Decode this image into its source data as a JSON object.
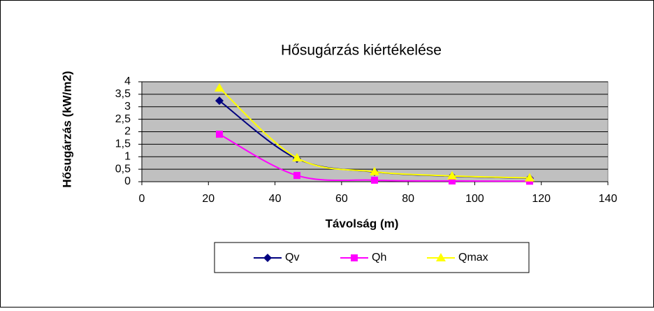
{
  "chart_data": {
    "type": "line",
    "title": "Hősugárzás kiértékelése",
    "xlabel": "Távolság (m)",
    "ylabel": "Hősugárzás (kW/m2)",
    "x": [
      23.3,
      46.6,
      69.9,
      93.2,
      116.5
    ],
    "series": [
      {
        "name": "Qv",
        "color": "#000080",
        "marker": "diamond",
        "values": [
          3.24,
          0.92,
          0.39,
          0.22,
          0.14
        ]
      },
      {
        "name": "Qh",
        "color": "#ff00ff",
        "marker": "square",
        "values": [
          1.9,
          0.25,
          0.06,
          0.03,
          0.02
        ]
      },
      {
        "name": "Qmax",
        "color": "#ffff00",
        "marker": "triangle",
        "values": [
          3.75,
          0.95,
          0.4,
          0.23,
          0.15
        ]
      }
    ],
    "xlim": [
      0,
      140
    ],
    "xticks": [
      0,
      20,
      40,
      60,
      80,
      100,
      120,
      140
    ],
    "ylim": [
      0,
      4
    ],
    "yticks": [
      0,
      {
        "value": 0.5,
        "label": "0,5"
      },
      1,
      {
        "value": 1.5,
        "label": "1,5"
      },
      2,
      {
        "value": 2.5,
        "label": "2,5"
      },
      3,
      {
        "value": 3.5,
        "label": "3,5"
      },
      4
    ],
    "grid": true,
    "smooth": true,
    "legend": "bottom"
  }
}
